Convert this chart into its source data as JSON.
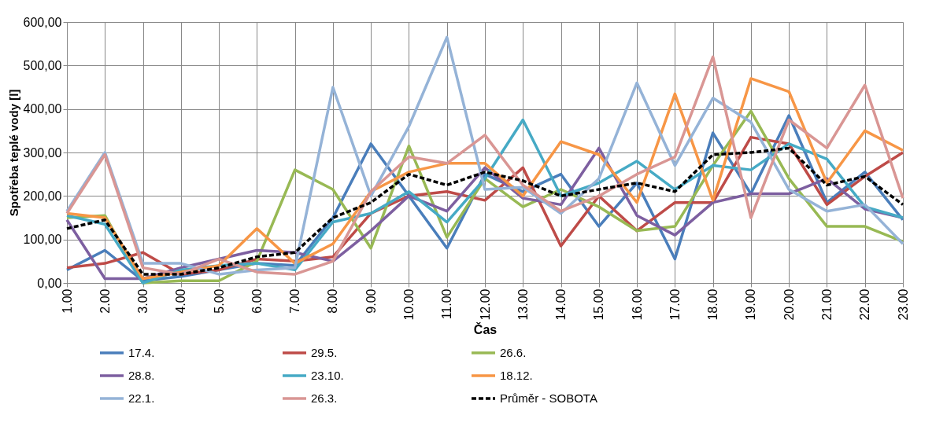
{
  "chart_data": {
    "type": "line",
    "ylabel": "Spotřeba teplé vody [l]",
    "xlabel": "Čas",
    "categories": [
      "1.00",
      "2.00",
      "3.00",
      "4.00",
      "5.00",
      "6.00",
      "7.00",
      "8.00",
      "9.00",
      "10.00",
      "11.00",
      "12.00",
      "13.00",
      "14.00",
      "15.00",
      "16.00",
      "17.00",
      "18.00",
      "19.00",
      "20.00",
      "21.00",
      "22.00",
      "23.00"
    ],
    "ylim": [
      0,
      600
    ],
    "yticks": [
      {
        "value": 0,
        "label": "0,00"
      },
      {
        "value": 100,
        "label": "100,00"
      },
      {
        "value": 200,
        "label": "200,00"
      },
      {
        "value": 300,
        "label": "300,00"
      },
      {
        "value": 400,
        "label": "400,00"
      },
      {
        "value": 500,
        "label": "500,00"
      },
      {
        "value": 600,
        "label": "600,00"
      }
    ],
    "grid": true,
    "legend": "bottom",
    "marker": "none",
    "series": [
      {
        "name": "17.4.",
        "color": "#4a7ebb",
        "values": [
          30,
          75,
          5,
          15,
          30,
          45,
          40,
          150,
          320,
          200,
          80,
          250,
          210,
          250,
          130,
          230,
          55,
          345,
          205,
          385,
          185,
          255,
          145
        ]
      },
      {
        "name": "29.5.",
        "color": "#be4b48",
        "values": [
          35,
          45,
          70,
          20,
          30,
          55,
          50,
          60,
          160,
          200,
          210,
          190,
          265,
          85,
          200,
          120,
          185,
          185,
          335,
          320,
          180,
          245,
          300
        ]
      },
      {
        "name": "26.6.",
        "color": "#98b954",
        "values": [
          150,
          155,
          0,
          5,
          5,
          50,
          260,
          215,
          80,
          315,
          105,
          240,
          175,
          215,
          175,
          120,
          130,
          270,
          395,
          240,
          130,
          130,
          95
        ]
      },
      {
        "name": "28.8.",
        "color": "#7d5fa0",
        "values": [
          145,
          10,
          10,
          35,
          55,
          75,
          70,
          50,
          120,
          200,
          165,
          265,
          195,
          180,
          310,
          155,
          110,
          185,
          205,
          205,
          240,
          170,
          150
        ]
      },
      {
        "name": "23.10.",
        "color": "#46aac5",
        "values": [
          155,
          135,
          0,
          30,
          40,
          45,
          30,
          140,
          160,
          210,
          140,
          240,
          375,
          200,
          230,
          280,
          215,
          270,
          260,
          320,
          285,
          175,
          150
        ]
      },
      {
        "name": "18.12.",
        "color": "#f79646",
        "values": [
          160,
          150,
          10,
          25,
          40,
          125,
          45,
          90,
          210,
          255,
          275,
          275,
          200,
          325,
          295,
          185,
          435,
          190,
          470,
          440,
          230,
          350,
          305
        ]
      },
      {
        "name": "22.1.",
        "color": "#95b3d7",
        "values": [
          165,
          300,
          45,
          45,
          20,
          30,
          35,
          450,
          200,
          360,
          565,
          215,
          220,
          160,
          240,
          460,
          270,
          425,
          370,
          215,
          165,
          180,
          90
        ]
      },
      {
        "name": "26.3.",
        "color": "#d99694",
        "values": [
          160,
          295,
          35,
          20,
          55,
          25,
          20,
          50,
          210,
          290,
          275,
          340,
          225,
          165,
          200,
          250,
          290,
          520,
          150,
          375,
          310,
          455,
          195
        ]
      },
      {
        "name": "Průměr - SOBOTA",
        "color": "#000000",
        "line_style": "dashed",
        "values": [
          125,
          145,
          20,
          20,
          35,
          60,
          70,
          150,
          185,
          250,
          225,
          255,
          235,
          200,
          215,
          230,
          210,
          295,
          300,
          310,
          225,
          245,
          180
        ]
      }
    ]
  }
}
